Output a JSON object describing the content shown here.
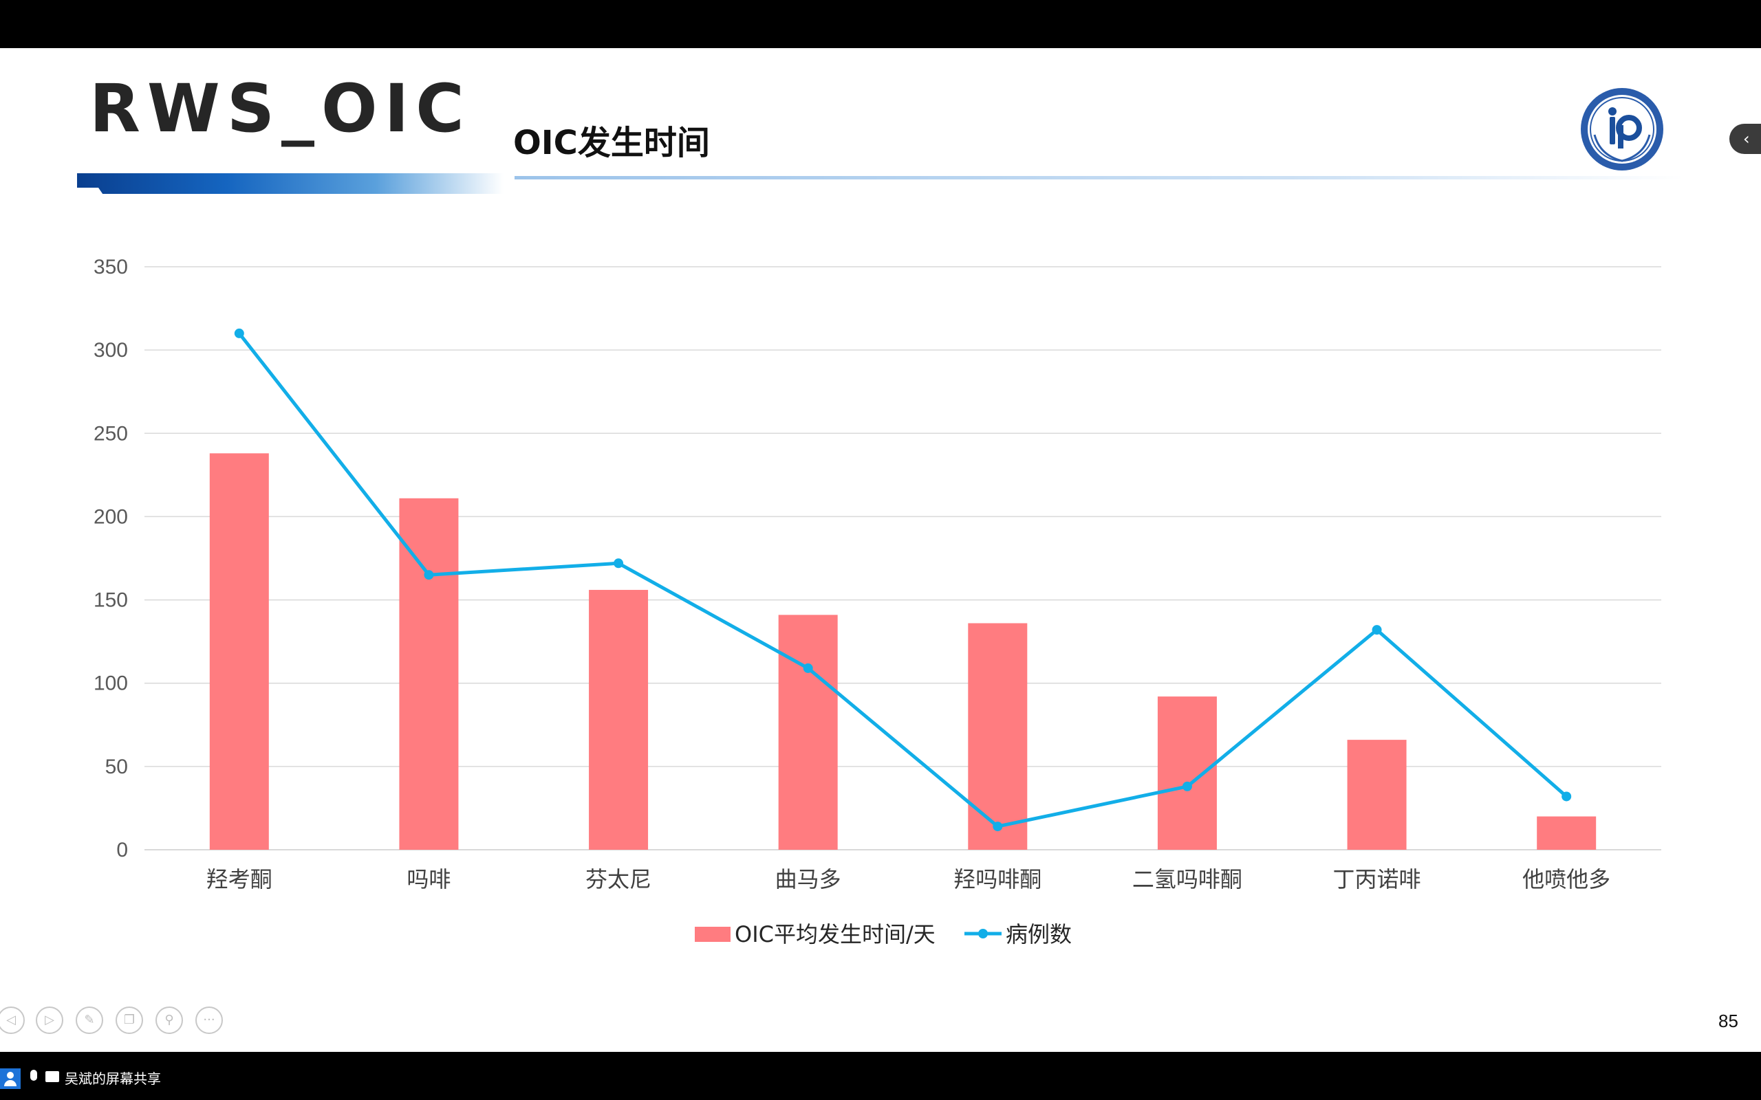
{
  "slide": {
    "title": "RWS_OIC",
    "subtitle": "OIC发生时间",
    "page_number": "85"
  },
  "footer": {
    "share_label": "吴斌的屏幕共享"
  },
  "colors": {
    "bar": "#ff7c80",
    "line": "#12aee8",
    "grid": "#d9d9d9"
  },
  "chart_data": {
    "type": "bar",
    "categories": [
      "羟考酮",
      "吗啡",
      "芬太尼",
      "曲马多",
      "羟吗啡酮",
      "二氢吗啡酮",
      "丁丙诺啡",
      "他喷他多"
    ],
    "series": [
      {
        "name": "OIC平均发生时间/天",
        "type": "bar",
        "values": [
          238,
          211,
          156,
          141,
          136,
          92,
          66,
          20
        ]
      },
      {
        "name": "病例数",
        "type": "line",
        "values": [
          310,
          165,
          172,
          109,
          14,
          38,
          132,
          32
        ]
      }
    ],
    "y_ticks": [
      0,
      50,
      100,
      150,
      200,
      250,
      300,
      350
    ],
    "ylim": [
      0,
      350
    ],
    "grid": true,
    "legend": "bottom-center"
  }
}
